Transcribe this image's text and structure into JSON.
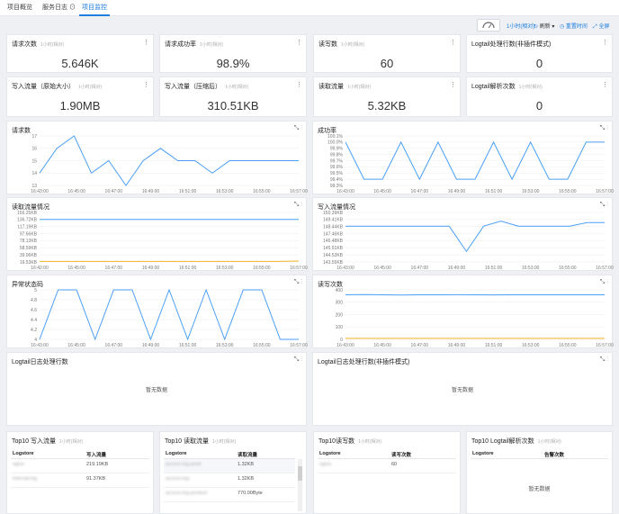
{
  "tabs": [
    {
      "label": "项目概览",
      "active": false
    },
    {
      "label": "服务日志",
      "active": false,
      "badge": "⊙"
    },
    {
      "label": "项目监控",
      "active": true
    }
  ],
  "toolbar": {
    "time": "1小时(相对)",
    "refresh": "刷新",
    "reset_time": "重置时间",
    "fullscreen": "全屏"
  },
  "stats": [
    {
      "title": "请求次数",
      "sub": "1小时(相对)",
      "value": "5.646K"
    },
    {
      "title": "请求成功率",
      "sub": "1小时(相对)",
      "value": "98.9%"
    },
    {
      "title": "读写数",
      "sub": "1小时(相对)",
      "value": "60"
    },
    {
      "title": "Logtail处理行数(非插件模式)",
      "sub": "",
      "value": "0"
    },
    {
      "title": "写入流量（原始大小）",
      "sub": "1小时(相对)",
      "value": "1.90MB"
    },
    {
      "title": "写入流量（压缩后）",
      "sub": "1小时(相对)",
      "value": "310.51KB"
    },
    {
      "title": "读取流量",
      "sub": "1小时(相对)",
      "value": "5.32KB"
    },
    {
      "title": "Logtail解析次数",
      "sub": "1小时(相对)",
      "value": "0"
    }
  ],
  "charts": {
    "requests": {
      "title": "请求数",
      "y_ticks": [
        "17",
        "16",
        "15",
        "14",
        "13"
      ],
      "x_ticks": [
        "16:43:00",
        "16:45:00",
        "16:47:00",
        "16:49:00",
        "16:51:00",
        "16:53:00",
        "16:55:00",
        "16:57:00"
      ],
      "color": "#4a9ff5",
      "ylim": [
        13,
        17
      ],
      "values": [
        14,
        16,
        17,
        14,
        15,
        13,
        15,
        16,
        15,
        15,
        14,
        15,
        15,
        15,
        15,
        15
      ]
    },
    "success": {
      "title": "成功率",
      "y_ticks": [
        "100.1%",
        "100.0%",
        "99.9%",
        "99.8%",
        "99.7%",
        "99.6%",
        "99.5%",
        "99.4%",
        "99.3%"
      ],
      "x_ticks": [
        "16:43:00",
        "16:45:00",
        "16:47:00",
        "16:49:00",
        "16:51:00",
        "16:53:00",
        "16:55:00",
        "16:57:00"
      ],
      "color": "#4a9ff5",
      "ylim": [
        99.3,
        100.1
      ],
      "values": [
        100.0,
        99.4,
        99.4,
        100.0,
        99.4,
        100.0,
        99.4,
        99.4,
        100.0,
        99.4,
        100.0,
        99.4,
        99.4,
        100.0,
        100.0
      ]
    },
    "read_traffic": {
      "title": "读取流量情况",
      "y_ticks": [
        "156.25KB",
        "136.72KB",
        "117.19KB",
        "97.66KB",
        "78.13KB",
        "58.59KB",
        "39.06KB",
        "19.53KB"
      ],
      "x_ticks": [
        "16:42:00",
        "16:45:00",
        "16:47:00",
        "16:49:00",
        "16:51:00",
        "16:53:00",
        "16:55:00",
        "16:57:00"
      ],
      "ylim": [
        19.53,
        156.25
      ],
      "series": [
        {
          "color": "#4a9ff5",
          "values": [
            137,
            137,
            137,
            137,
            137,
            137,
            137,
            137,
            137,
            137,
            137,
            137,
            137,
            137,
            137
          ]
        },
        {
          "color": "#f5b42a",
          "values": [
            21,
            21,
            21,
            21,
            21,
            21,
            21,
            21,
            21,
            21,
            21,
            21,
            21,
            21,
            22
          ]
        }
      ]
    },
    "write_traffic": {
      "title": "写入流量情况",
      "y_ticks": [
        "150.39KB",
        "149.41KB",
        "148.44KB",
        "147.46KB",
        "146.48KB",
        "145.51KB",
        "144.53KB",
        "143.55KB"
      ],
      "x_ticks": [
        "16:43:00",
        "16:45:00",
        "16:47:00",
        "16:49:00",
        "16:51:00",
        "16:53:00",
        "16:55:00",
        "16:57:00"
      ],
      "color": "#4a9ff5",
      "ylim": [
        143.55,
        150.39
      ],
      "values": [
        148.5,
        148.5,
        148.5,
        148.5,
        148.5,
        148.5,
        148.5,
        145.0,
        148.5,
        149.2,
        148.5,
        148.5,
        148.5,
        148.5,
        149.0,
        149.0
      ]
    },
    "error_status": {
      "title": "异常状态码",
      "y_ticks": [
        "5",
        "4.8",
        "4.6",
        "4.4",
        "4.2",
        "4"
      ],
      "x_ticks": [
        "16:43:00",
        "16:45:00",
        "16:47:00",
        "16:49:00",
        "16:51:00",
        "16:53:00",
        "16:55:00",
        "16:57:00"
      ],
      "color": "#4a9ff5",
      "ylim": [
        4,
        5
      ],
      "values": [
        4,
        5,
        5,
        4,
        5,
        5,
        4,
        5,
        4,
        5,
        4,
        5,
        5,
        4,
        4
      ]
    },
    "read_write": {
      "title": "读写次数",
      "y_ticks": [
        "400",
        "300",
        "200",
        "100",
        "0"
      ],
      "x_ticks": [
        "16:43:00",
        "16:45:00",
        "16:47:00",
        "16:49:00",
        "16:51:00",
        "16:53:00",
        "16:55:00",
        "16:57:00"
      ],
      "ylim": [
        0,
        400
      ],
      "series": [
        {
          "color": "#4a9ff5",
          "values": [
            360,
            362,
            360,
            358,
            360,
            360,
            361,
            360,
            359,
            360,
            360,
            360,
            360,
            360,
            360
          ]
        },
        {
          "color": "#f5b42a",
          "values": [
            8,
            8,
            8,
            8,
            8,
            8,
            8,
            8,
            8,
            8,
            8,
            8,
            8,
            8,
            8
          ]
        }
      ]
    },
    "logtail_lines": {
      "title": "Logtail日志处理行数",
      "empty": "暂无数据"
    },
    "logtail_lines_nonplugin": {
      "title": "Logtail日志处理行数(非插件模式)",
      "empty": "暂无数据"
    }
  },
  "tables": [
    {
      "title": "Top10 写入流量",
      "sub": "1小时(相对)",
      "headers": [
        "Logstore",
        "写入流量"
      ],
      "rows": [
        [
          "nginx",
          "219.19KB"
        ],
        [
          "internal-log",
          "91.37KB"
        ]
      ]
    },
    {
      "title": "Top10 读取流量",
      "sub": "1小时(相对)",
      "headers": [
        "Logstore",
        "读取流量"
      ],
      "rows": [
        [
          "access-log-prod",
          "1.32KB"
        ],
        [
          "access-log",
          "1.32KB"
        ],
        [
          "access-log-product",
          "770.00Byte"
        ]
      ]
    },
    {
      "title": "Top10读写数",
      "sub": "1小时(相对)",
      "headers": [
        "Logstore",
        "读写次数"
      ],
      "rows": [
        [
          "nginx",
          "60"
        ]
      ]
    },
    {
      "title": "Top10 Logtail解析次数",
      "sub": "1小时(相对)",
      "headers": [
        "Logstore",
        "告警次数"
      ],
      "rows": [],
      "empty": "暂无数据"
    }
  ]
}
